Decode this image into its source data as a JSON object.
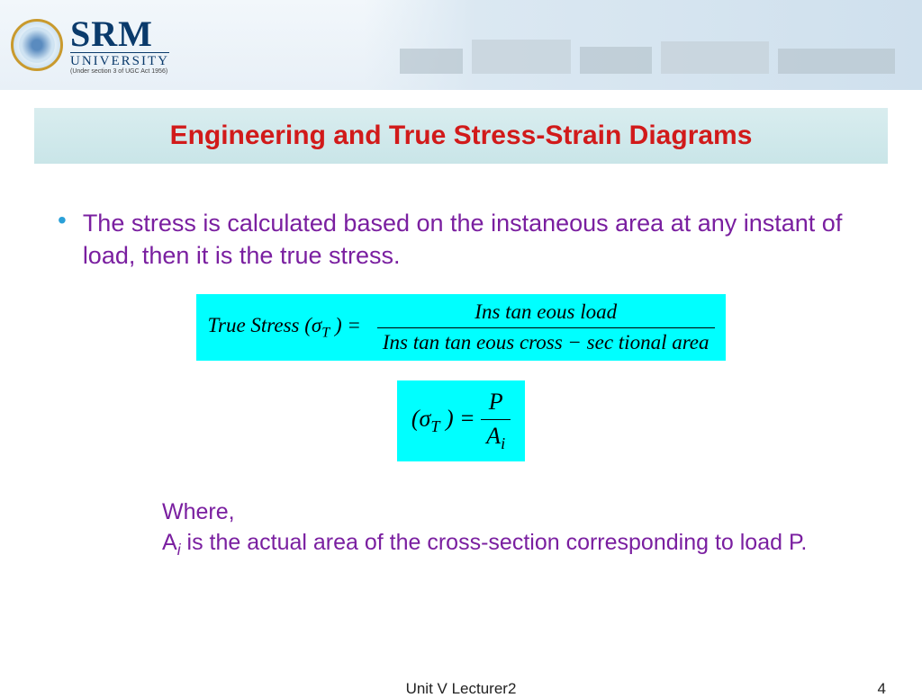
{
  "header": {
    "logo_main": "SRM",
    "logo_sub1": "UNIVERSITY",
    "logo_sub2": "(Under section 3 of UGC Act 1956)"
  },
  "title": "Engineering and True Stress-Strain Diagrams",
  "bullet": "The stress is calculated based on the instaneous area at any instant of load, then it is the true stress.",
  "formula1": {
    "lhs": "True Stress (σ",
    "lhs_sub": "T",
    "lhs_close": " )   =",
    "numerator": "Ins tan eous   load",
    "denominator": "Ins tan tan eous  cross − sec tional  area"
  },
  "formula2": {
    "open": "(σ",
    "sub": "T",
    "mid": " ) = ",
    "num": "P",
    "den_sym": "A",
    "den_sub": "i"
  },
  "where": {
    "line1": "Where,",
    "line2_pre": "A",
    "line2_sub": "i",
    "line2_post": " is the actual area of the cross-section corresponding to load P."
  },
  "footer": {
    "center": "Unit V Lecturer2",
    "page": "4"
  },
  "colors": {
    "title_text": "#d11a1a",
    "title_bg": "#c9e5e8",
    "body_text": "#7a1fa0",
    "bullet": "#2aa0d8",
    "formula_bg": "#00ffff",
    "logo_text": "#0a3a6b"
  }
}
